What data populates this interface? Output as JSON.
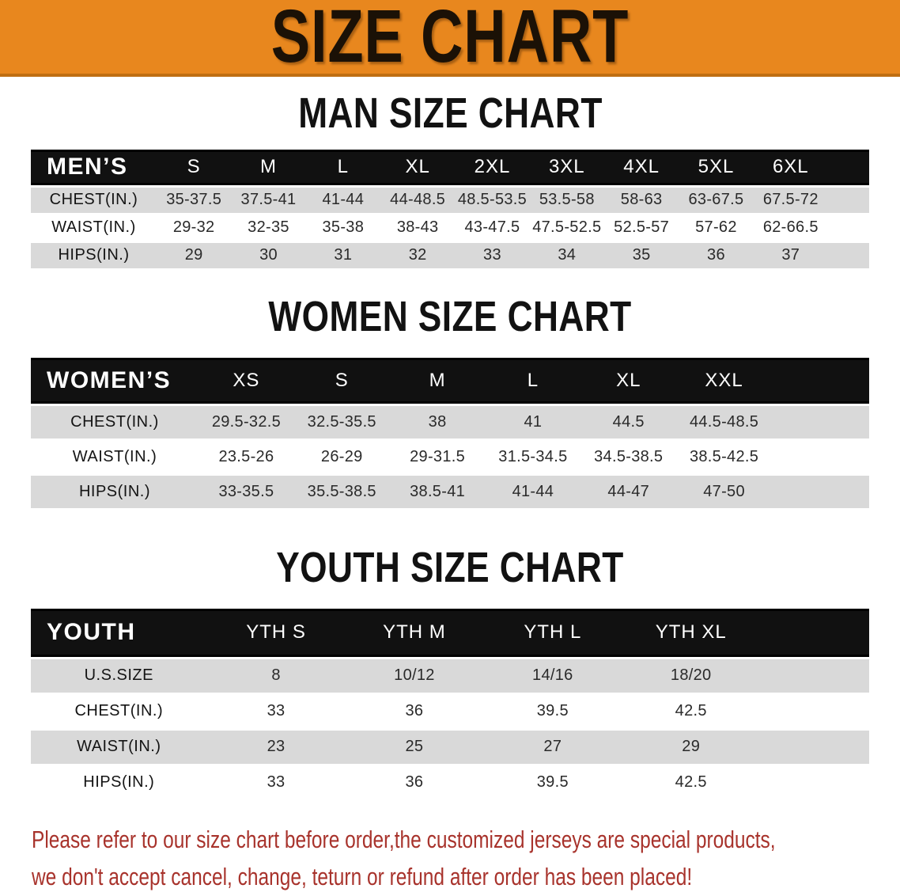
{
  "banner": {
    "title": "SIZE CHART"
  },
  "colors": {
    "banner_bg": "#E8871E",
    "banner_edge": "#BF6E12",
    "header_bar": "#111111",
    "row_stripe": "#D9D9D9",
    "disclaimer_red": "#A8332C"
  },
  "sections": {
    "men": {
      "title": "MAN SIZE CHART",
      "header_label": "MEN’S",
      "sizes": [
        "S",
        "M",
        "L",
        "XL",
        "2XL",
        "3XL",
        "4XL",
        "5XL",
        "6XL"
      ],
      "rows": [
        {
          "label": "CHEST(IN.)",
          "values": [
            "35-37.5",
            "37.5-41",
            "41-44",
            "44-48.5",
            "48.5-53.5",
            "53.5-58",
            "58-63",
            "63-67.5",
            "67.5-72"
          ]
        },
        {
          "label": "WAIST(IN.)",
          "values": [
            "29-32",
            "32-35",
            "35-38",
            "38-43",
            "43-47.5",
            "47.5-52.5",
            "52.5-57",
            "57-62",
            "62-66.5"
          ]
        },
        {
          "label": "HIPS(IN.)",
          "values": [
            "29",
            "30",
            "31",
            "32",
            "33",
            "34",
            "35",
            "36",
            "37"
          ]
        }
      ]
    },
    "women": {
      "title": "WOMEN SIZE CHART",
      "header_label": "WOMEN’S",
      "sizes": [
        "XS",
        "S",
        "M",
        "L",
        "XL",
        "XXL"
      ],
      "rows": [
        {
          "label": "CHEST(IN.)",
          "values": [
            "29.5-32.5",
            "32.5-35.5",
            "38",
            "41",
            "44.5",
            "44.5-48.5"
          ]
        },
        {
          "label": "WAIST(IN.)",
          "values": [
            "23.5-26",
            "26-29",
            "29-31.5",
            "31.5-34.5",
            "34.5-38.5",
            "38.5-42.5"
          ]
        },
        {
          "label": "HIPS(IN.)",
          "values": [
            "33-35.5",
            "35.5-38.5",
            "38.5-41",
            "41-44",
            "44-47",
            "47-50"
          ]
        }
      ]
    },
    "youth": {
      "title": "YOUTH SIZE CHART",
      "header_label": "YOUTH",
      "sizes": [
        "YTH S",
        "YTH M",
        "YTH L",
        "YTH XL"
      ],
      "rows": [
        {
          "label": "U.S.SIZE",
          "values": [
            "8",
            "10/12",
            "14/16",
            "18/20"
          ]
        },
        {
          "label": "CHEST(IN.)",
          "values": [
            "33",
            "36",
            "39.5",
            "42.5"
          ]
        },
        {
          "label": "WAIST(IN.)",
          "values": [
            "23",
            "25",
            "27",
            "29"
          ]
        },
        {
          "label": "HIPS(IN.)",
          "values": [
            "33",
            "36",
            "39.5",
            "42.5"
          ]
        }
      ]
    }
  },
  "footer": {
    "line1": "Please refer to our size chart before order,the customized jerseys are special products,",
    "line2": "we don't accept cancel, change, teturn or refund after order has been placed!"
  }
}
